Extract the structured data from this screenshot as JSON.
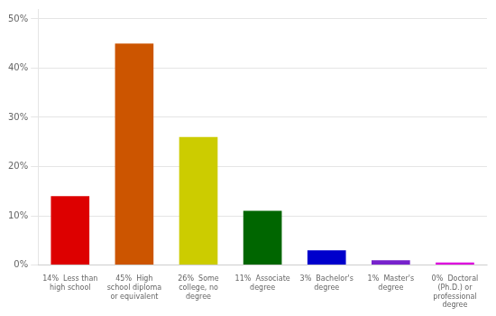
{
  "chart_data": {
    "type": "bar",
    "categories": [
      "14%  Less than\nhigh school",
      "45%  High\nschool diploma\nor equivalent",
      "26%  Some\ncollege, no\ndegree",
      "11%  Associate\ndegree",
      "3%  Bachelor's\ndegree",
      "1%  Master's\ndegree",
      "0%  Doctoral\n(Ph.D.) or\nprofessional\ndegree"
    ],
    "values": [
      14,
      45,
      26,
      11,
      3,
      1,
      0.5
    ],
    "colors": [
      "#dd0000",
      "#cc5500",
      "#cccc00",
      "#006600",
      "#0000cc",
      "#7722cc",
      "#dd00dd"
    ],
    "ylim": [
      0,
      52
    ],
    "yticks": [
      {
        "value": 0,
        "label": "0%"
      },
      {
        "value": 10,
        "label": "10%"
      },
      {
        "value": 20,
        "label": "20%"
      },
      {
        "value": 30,
        "label": "30%"
      },
      {
        "value": 40,
        "label": "40%"
      },
      {
        "value": 50,
        "label": "50%"
      }
    ],
    "grid": true
  }
}
